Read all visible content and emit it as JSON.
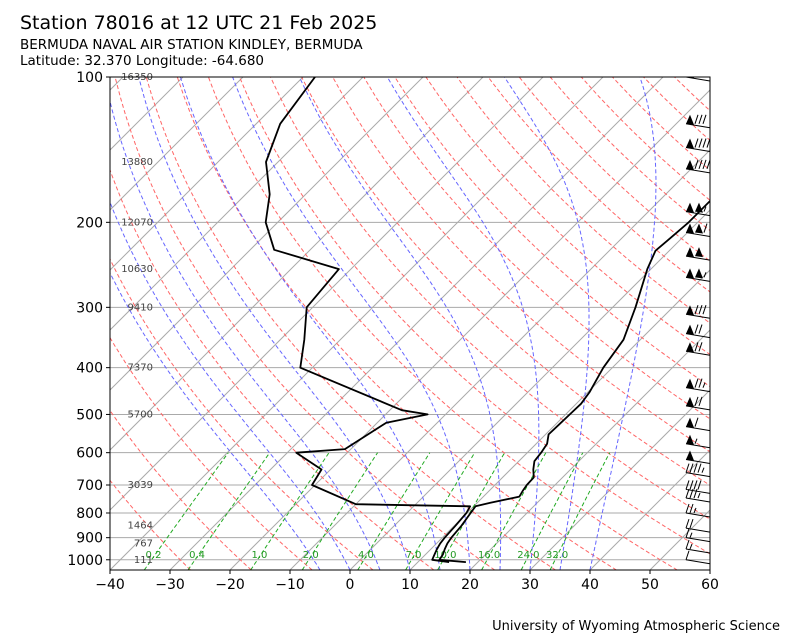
{
  "header": {
    "title": "Station 78016 at 12 UTC 21 Feb 2025",
    "station": "BERMUDA NAVAL AIR STATION KINDLEY, BERMUDA",
    "location": "Latitude: 32.370 Longitude: -64.680"
  },
  "footer": {
    "credit": "University of Wyoming Atmospheric Science"
  },
  "chart_data": {
    "type": "line",
    "xlim": [
      -40,
      60
    ],
    "ylim": [
      1050,
      100
    ],
    "y_scale": "log",
    "x_ticks": [
      -40,
      -30,
      -20,
      -10,
      0,
      10,
      20,
      30,
      40,
      50,
      60
    ],
    "y_ticks": [
      100,
      200,
      300,
      400,
      500,
      600,
      700,
      800,
      900,
      1000
    ],
    "height_labels": [
      {
        "p": 100,
        "text": "16350"
      },
      {
        "p": 150,
        "text": "13880"
      },
      {
        "p": 200,
        "text": "12070"
      },
      {
        "p": 250,
        "text": "10630"
      },
      {
        "p": 300,
        "text": "9410"
      },
      {
        "p": 400,
        "text": "7370"
      },
      {
        "p": 500,
        "text": "5700"
      },
      {
        "p": 700,
        "text": "3039"
      },
      {
        "p": 850,
        "text": "1464"
      },
      {
        "p": 925,
        "text": "767"
      },
      {
        "p": 1000,
        "text": "111"
      }
    ],
    "mixing_ratio_labels": [
      "0.2",
      "0.4",
      "1.0",
      "2.0",
      "4.0",
      "7.0",
      "10.0",
      "16.0",
      "24.0",
      "32.0"
    ],
    "temperature_profile": [
      [
        1011,
        18
      ],
      [
        1000,
        13.2
      ],
      [
        975,
        12.9
      ],
      [
        950,
        12.3
      ],
      [
        925,
        11.8
      ],
      [
        900,
        11.5
      ],
      [
        850,
        11.2
      ],
      [
        800,
        10.6
      ],
      [
        775,
        10.3
      ],
      [
        762,
        12.2
      ],
      [
        740,
        16
      ],
      [
        720,
        15.6
      ],
      [
        700,
        15.3
      ],
      [
        675,
        15.2
      ],
      [
        650,
        13.8
      ],
      [
        625,
        12.6
      ],
      [
        600,
        12.3
      ],
      [
        575,
        11.8
      ],
      [
        550,
        10.5
      ],
      [
        525,
        10.6
      ],
      [
        500,
        10.7
      ],
      [
        475,
        10.8
      ],
      [
        450,
        10.3
      ],
      [
        400,
        8.5
      ],
      [
        350,
        7.2
      ],
      [
        300,
        3.8
      ],
      [
        250,
        -0.6
      ],
      [
        229,
        -2.3
      ],
      [
        218,
        -2.0
      ],
      [
        200,
        -1.5
      ],
      [
        175,
        -1.5
      ],
      [
        150,
        -1.3
      ],
      [
        125,
        -2.4
      ],
      [
        110,
        -3.3
      ],
      [
        100,
        -5.6
      ]
    ],
    "dewpoint_profile": [
      [
        1011,
        15.2
      ],
      [
        1000,
        12.0
      ],
      [
        975,
        11.5
      ],
      [
        950,
        11.0
      ],
      [
        925,
        10.6
      ],
      [
        900,
        10.4
      ],
      [
        850,
        10.2
      ],
      [
        800,
        9.9
      ],
      [
        775,
        9.4
      ],
      [
        767,
        -10
      ],
      [
        700,
        -20.5
      ],
      [
        650,
        -21.5
      ],
      [
        600,
        -28.5
      ],
      [
        590,
        -21.0
      ],
      [
        520,
        -18.5
      ],
      [
        500,
        -13.0
      ],
      [
        490,
        -18
      ],
      [
        400,
        -42
      ],
      [
        350,
        -46
      ],
      [
        300,
        -51
      ],
      [
        250,
        -52
      ],
      [
        228,
        -66
      ],
      [
        200,
        -72
      ],
      [
        175,
        -76
      ],
      [
        150,
        -82
      ],
      [
        125,
        -86
      ],
      [
        100,
        -88
      ]
    ],
    "wind_barbs": [
      {
        "p": 100,
        "speed_kt": 70
      },
      {
        "p": 125,
        "speed_kt": 80
      },
      {
        "p": 140,
        "speed_kt": 90
      },
      {
        "p": 155,
        "speed_kt": 95
      },
      {
        "p": 190,
        "speed_kt": 105
      },
      {
        "p": 210,
        "speed_kt": 110
      },
      {
        "p": 235,
        "speed_kt": 100
      },
      {
        "p": 260,
        "speed_kt": 105
      },
      {
        "p": 310,
        "speed_kt": 80
      },
      {
        "p": 340,
        "speed_kt": 70
      },
      {
        "p": 370,
        "speed_kt": 70
      },
      {
        "p": 440,
        "speed_kt": 75
      },
      {
        "p": 480,
        "speed_kt": 70
      },
      {
        "p": 530,
        "speed_kt": 60
      },
      {
        "p": 575,
        "speed_kt": 55
      },
      {
        "p": 620,
        "speed_kt": 50
      },
      {
        "p": 660,
        "speed_kt": 45
      },
      {
        "p": 715,
        "speed_kt": 40
      },
      {
        "p": 745,
        "speed_kt": 35
      },
      {
        "p": 800,
        "speed_kt": 25
      },
      {
        "p": 860,
        "speed_kt": 20
      },
      {
        "p": 900,
        "speed_kt": 15
      },
      {
        "p": 950,
        "speed_kt": 15
      },
      {
        "p": 1000,
        "speed_kt": 10
      }
    ]
  }
}
